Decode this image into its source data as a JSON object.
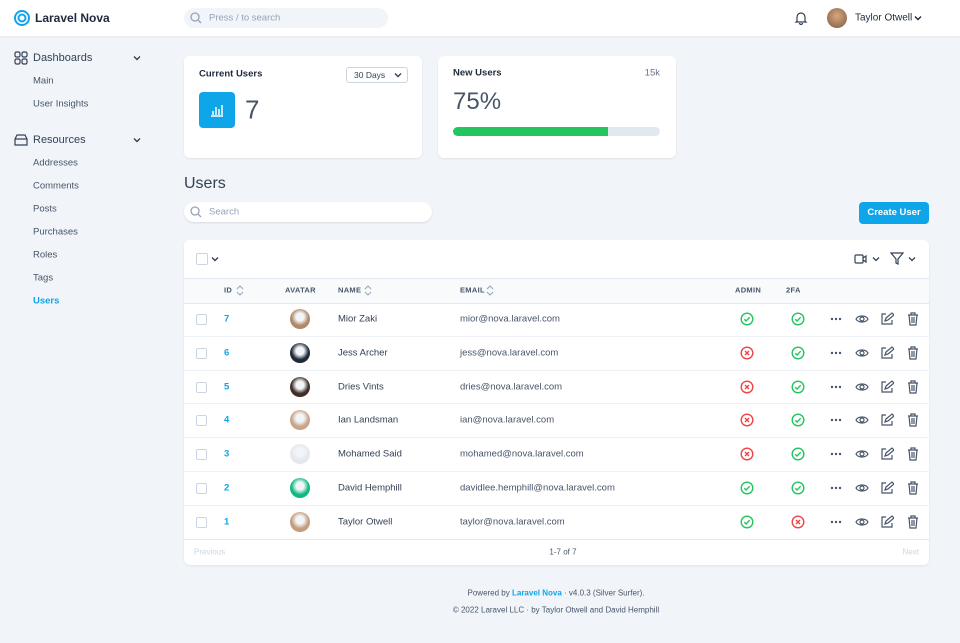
{
  "header": {
    "brand": "Laravel Nova",
    "search_placeholder": "Press / to search",
    "user": "Taylor Otwell"
  },
  "sidebar": {
    "sections": [
      {
        "title": "Dashboards",
        "items": [
          "Main",
          "User Insights"
        ]
      },
      {
        "title": "Resources",
        "items": [
          "Addresses",
          "Comments",
          "Posts",
          "Purchases",
          "Roles",
          "Tags",
          "Users"
        ],
        "active_item": 6
      }
    ]
  },
  "cards": {
    "current_users": {
      "title": "Current Users",
      "range": "30 Days",
      "value": 7
    },
    "new_users": {
      "title": "New Users",
      "total": "15k",
      "progress": {
        "value": 75,
        "label": "75%"
      }
    }
  },
  "resource": {
    "title": "Users",
    "search_placeholder": "Search",
    "create_button": "Create User",
    "columns": [
      "ID",
      "AVATAR",
      "NAME",
      "EMAIL",
      "ADMIN",
      "2FA"
    ],
    "rows": [
      {
        "id": 7,
        "name": "Mior Zaki",
        "email": "mior@nova.laravel.com",
        "admin": true,
        "two_fa": true
      },
      {
        "id": 6,
        "name": "Jess Archer",
        "email": "jess@nova.laravel.com",
        "admin": false,
        "two_fa": true
      },
      {
        "id": 5,
        "name": "Dries Vints",
        "email": "dries@nova.laravel.com",
        "admin": false,
        "two_fa": true
      },
      {
        "id": 4,
        "name": "Ian Landsman",
        "email": "ian@nova.laravel.com",
        "admin": false,
        "two_fa": true
      },
      {
        "id": 3,
        "name": "Mohamed Said",
        "email": "mohamed@nova.laravel.com",
        "admin": false,
        "two_fa": true
      },
      {
        "id": 2,
        "name": "David Hemphill",
        "email": "davidlee.hemphill@nova.laravel.com",
        "admin": true,
        "two_fa": true
      },
      {
        "id": 1,
        "name": "Taylor Otwell",
        "email": "taylor@nova.laravel.com",
        "admin": true,
        "two_fa": false
      }
    ],
    "pagination": {
      "previous": "Previous",
      "status": "1-7 of 7",
      "next": "Next"
    }
  },
  "footer": {
    "powered_by": "Powered by",
    "product": "Laravel Nova",
    "version": "· v4.0.3 (Silver Surfer).",
    "copyright": "© 2022 Laravel LLC · by Taylor Otwell and David Hemphill"
  }
}
